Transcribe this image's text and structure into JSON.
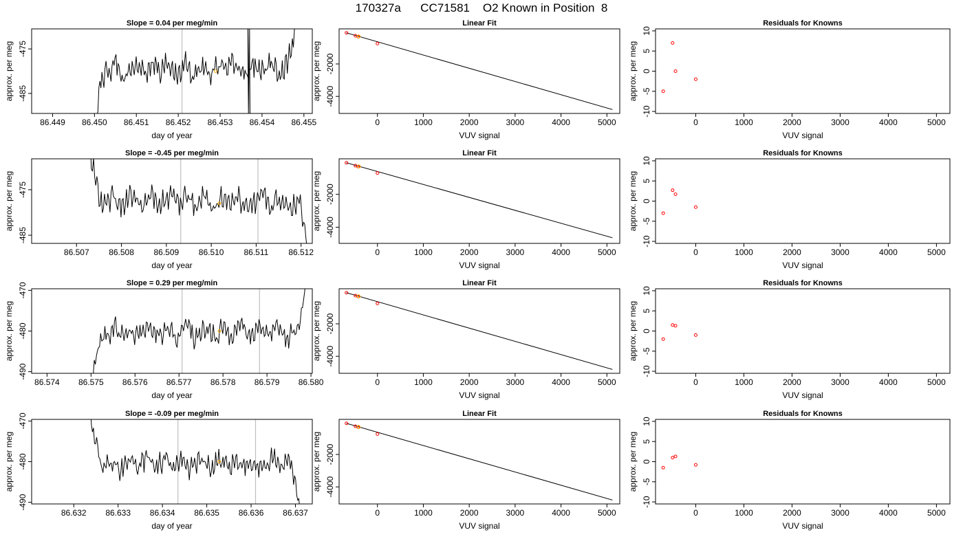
{
  "page": {
    "title": "170327a      CC71581    O2 Known in Position  8"
  },
  "colors": {
    "trace": "#000000",
    "marker_orange": "#ffa500",
    "residual_red": "#ff0000",
    "vline_gray": "#bebebe"
  },
  "chart_data": [
    {
      "type": "line",
      "row": 1,
      "col": 1,
      "title": "Slope =  0.04  per meg/min",
      "xlabel": "day of year",
      "ylabel": "approx. per meg",
      "xlim": [
        86.4485,
        86.4552
      ],
      "ylim": [
        -489.5,
        -470.5
      ],
      "xticks": [
        86.449,
        86.45,
        86.451,
        86.452,
        86.453,
        86.454,
        86.455
      ],
      "xtick_labels": [
        "86.449",
        "86.450",
        "86.451",
        "86.452",
        "86.453",
        "86.454",
        "86.455"
      ],
      "yticks": [
        -485,
        -475
      ],
      "ytick_labels": [
        "-485",
        "-475"
      ],
      "grid": false,
      "trace": {
        "start": 86.45001,
        "end": 86.45482,
        "level": -479.5,
        "noise": 1.8,
        "head": -492,
        "tail": -466
      },
      "vlines": [
        86.45209,
        86.45372
      ],
      "spike_at": 86.45366,
      "marker": {
        "x": 86.45289,
        "y": -480
      }
    },
    {
      "type": "scatter",
      "row": 1,
      "col": 2,
      "title": "Linear Fit",
      "xlabel": "VUV signal",
      "ylabel": "approx. per meg",
      "xlim": [
        -835,
        5280
      ],
      "ylim": [
        -5050,
        160
      ],
      "xticks": [
        0,
        1000,
        2000,
        3000,
        4000,
        5000
      ],
      "xtick_labels": [
        "0",
        "1000",
        "2000",
        "3000",
        "4000",
        "5000"
      ],
      "yticks": [
        -4000,
        -2000
      ],
      "ytick_labels": [
        "-4000",
        "-2000"
      ],
      "grid": false,
      "points": [
        [
          -675,
          -85
        ],
        [
          -480,
          -265
        ],
        [
          -420,
          -320
        ],
        [
          0,
          -745
        ]
      ],
      "highlight": [
        -410,
        -310
      ],
      "fit_line": [
        [
          -675,
          -85
        ],
        [
          5120,
          -4810
        ]
      ]
    },
    {
      "type": "scatter",
      "row": 1,
      "col": 3,
      "title": "Residuals for Knowns",
      "xlabel": "VUV signal",
      "ylabel": "approx. per meg",
      "xlim": [
        -835,
        5280
      ],
      "ylim": [
        -10.5,
        10.5
      ],
      "xticks": [
        0,
        1000,
        2000,
        3000,
        4000,
        5000
      ],
      "xtick_labels": [
        "0",
        "1000",
        "2000",
        "3000",
        "4000",
        "5000"
      ],
      "yticks": [
        -10,
        -5,
        0,
        5,
        10
      ],
      "ytick_labels": [
        "-10",
        "-5",
        "0",
        "5",
        "10"
      ],
      "grid": false,
      "points": [
        [
          -675,
          -5
        ],
        [
          -480,
          7
        ],
        [
          -420,
          0
        ],
        [
          0,
          -2
        ]
      ]
    },
    {
      "type": "line",
      "row": 2,
      "col": 1,
      "title": "Slope =  -0.45  per meg/min",
      "xlabel": "day of year",
      "ylabel": "approx. per meg",
      "xlim": [
        86.506,
        86.51225
      ],
      "ylim": [
        -486.8,
        -468.2
      ],
      "xticks": [
        86.507,
        86.508,
        86.509,
        86.51,
        86.511,
        86.512
      ],
      "xtick_labels": [
        "86.507",
        "86.508",
        "86.509",
        "86.510",
        "86.511",
        "86.512"
      ],
      "yticks": [
        -485,
        -475
      ],
      "ytick_labels": [
        "-485",
        "-475"
      ],
      "grid": false,
      "trace": {
        "start": 86.50728,
        "end": 86.51218,
        "level": -477.5,
        "noise": 1.8,
        "head": -466,
        "tail": -492
      },
      "vlines": [
        86.50932,
        86.51104
      ],
      "marker": {
        "x": 86.51018,
        "y": -478
      }
    },
    {
      "type": "scatter",
      "row": 2,
      "col": 2,
      "title": "Linear Fit",
      "xlabel": "VUV signal",
      "ylabel": "approx. per meg",
      "xlim": [
        -835,
        5280
      ],
      "ylim": [
        -4980,
        160
      ],
      "xticks": [
        0,
        1000,
        2000,
        3000,
        4000,
        5000
      ],
      "xtick_labels": [
        "0",
        "1000",
        "2000",
        "3000",
        "4000",
        "5000"
      ],
      "yticks": [
        -4000,
        -2000
      ],
      "ytick_labels": [
        "-4000",
        "-2000"
      ],
      "grid": false,
      "points": [
        [
          -675,
          -80
        ],
        [
          -480,
          -255
        ],
        [
          -420,
          -315
        ],
        [
          0,
          -705
        ]
      ],
      "highlight": [
        -405,
        -305
      ],
      "fit_line": [
        [
          -675,
          -80
        ],
        [
          5120,
          -4640
        ]
      ]
    },
    {
      "type": "scatter",
      "row": 2,
      "col": 3,
      "title": "Residuals for Knowns",
      "xlabel": "VUV signal",
      "ylabel": "approx. per meg",
      "xlim": [
        -835,
        5280
      ],
      "ylim": [
        -10.5,
        10.5
      ],
      "xticks": [
        0,
        1000,
        2000,
        3000,
        4000,
        5000
      ],
      "xtick_labels": [
        "0",
        "1000",
        "2000",
        "3000",
        "4000",
        "5000"
      ],
      "yticks": [
        -10,
        -5,
        0,
        5,
        10
      ],
      "ytick_labels": [
        "-10",
        "-5",
        "0",
        "5",
        "10"
      ],
      "grid": false,
      "points": [
        [
          -675,
          -3
        ],
        [
          -480,
          2.7
        ],
        [
          -420,
          1.7
        ],
        [
          0,
          -1.5
        ]
      ]
    },
    {
      "type": "line",
      "row": 3,
      "col": 1,
      "title": "Slope =  0.29  per meg/min",
      "xlabel": "day of year",
      "ylabel": "approx. per meg",
      "xlim": [
        86.57365,
        86.58003
      ],
      "ylim": [
        -490.4,
        -469.6
      ],
      "xticks": [
        86.574,
        86.575,
        86.576,
        86.577,
        86.578,
        86.579,
        86.58
      ],
      "xtick_labels": [
        "86.574",
        "86.575",
        "86.576",
        "86.577",
        "86.578",
        "86.579",
        "86.580"
      ],
      "yticks": [
        -490,
        -480,
        -470
      ],
      "ytick_labels": [
        "-490",
        "-480",
        "-470"
      ],
      "grid": false,
      "trace": {
        "start": 86.57505,
        "end": 86.57988,
        "level": -480.5,
        "noise": 1.7,
        "head": -492,
        "tail": -468
      },
      "vlines": [
        86.57707,
        86.57883
      ],
      "marker": {
        "x": 86.57792,
        "y": -480
      }
    },
    {
      "type": "scatter",
      "row": 3,
      "col": 2,
      "title": "Linear Fit",
      "xlabel": "VUV signal",
      "ylabel": "approx. per meg",
      "xlim": [
        -835,
        5280
      ],
      "ylim": [
        -5050,
        160
      ],
      "xticks": [
        0,
        1000,
        2000,
        3000,
        4000,
        5000
      ],
      "xtick_labels": [
        "0",
        "1000",
        "2000",
        "3000",
        "4000",
        "5000"
      ],
      "yticks": [
        -4000,
        -2000
      ],
      "ytick_labels": [
        "-4000",
        "-2000"
      ],
      "grid": false,
      "points": [
        [
          -675,
          -85
        ],
        [
          -480,
          -265
        ],
        [
          -420,
          -320
        ],
        [
          0,
          -745
        ]
      ],
      "highlight": [
        -410,
        -310
      ],
      "fit_line": [
        [
          -675,
          -85
        ],
        [
          5120,
          -4810
        ]
      ]
    },
    {
      "type": "scatter",
      "row": 3,
      "col": 3,
      "title": "Residuals for Knowns",
      "xlabel": "VUV signal",
      "ylabel": "approx. per meg",
      "xlim": [
        -835,
        5280
      ],
      "ylim": [
        -10.5,
        10.5
      ],
      "xticks": [
        0,
        1000,
        2000,
        3000,
        4000,
        5000
      ],
      "xtick_labels": [
        "0",
        "1000",
        "2000",
        "3000",
        "4000",
        "5000"
      ],
      "yticks": [
        -10,
        -5,
        0,
        5,
        10
      ],
      "ytick_labels": [
        "-10",
        "-5",
        "0",
        "5",
        "10"
      ],
      "grid": false,
      "points": [
        [
          -675,
          -2
        ],
        [
          -480,
          1.5
        ],
        [
          -420,
          1.3
        ],
        [
          0,
          -1
        ]
      ]
    },
    {
      "type": "line",
      "row": 4,
      "col": 1,
      "title": "Slope =  -0.09  per meg/min",
      "xlabel": "day of year",
      "ylabel": "approx. per meg",
      "xlim": [
        86.63105,
        86.63738
      ],
      "ylim": [
        -490.4,
        -469.6
      ],
      "xticks": [
        86.632,
        86.633,
        86.634,
        86.635,
        86.636,
        86.637
      ],
      "xtick_labels": [
        "86.632",
        "86.633",
        "86.634",
        "86.635",
        "86.636",
        "86.637"
      ],
      "yticks": [
        -490,
        -480,
        -470
      ],
      "ytick_labels": [
        "-490",
        "-480",
        "-470"
      ],
      "grid": false,
      "trace": {
        "start": 86.63235,
        "end": 86.6371,
        "level": -480.5,
        "noise": 1.7,
        "head": -466,
        "tail": -492
      },
      "vlines": [
        86.63435,
        86.6361
      ],
      "marker": {
        "x": 86.63528,
        "y": -480
      }
    },
    {
      "type": "scatter",
      "row": 4,
      "col": 2,
      "title": "Linear Fit",
      "xlabel": "VUV signal",
      "ylabel": "approx. per meg",
      "xlim": [
        -835,
        5280
      ],
      "ylim": [
        -5050,
        160
      ],
      "xticks": [
        0,
        1000,
        2000,
        3000,
        4000,
        5000
      ],
      "xtick_labels": [
        "0",
        "1000",
        "2000",
        "3000",
        "4000",
        "5000"
      ],
      "yticks": [
        -4000,
        -2000
      ],
      "ytick_labels": [
        "-4000",
        "-2000"
      ],
      "grid": false,
      "points": [
        [
          -675,
          -85
        ],
        [
          -480,
          -265
        ],
        [
          -420,
          -320
        ],
        [
          0,
          -745
        ]
      ],
      "highlight": [
        -410,
        -310
      ],
      "fit_line": [
        [
          -675,
          -85
        ],
        [
          5120,
          -4810
        ]
      ]
    },
    {
      "type": "scatter",
      "row": 4,
      "col": 3,
      "title": "Residuals for Knowns",
      "xlabel": "VUV signal",
      "ylabel": "approx. per meg",
      "xlim": [
        -835,
        5280
      ],
      "ylim": [
        -10.5,
        10.5
      ],
      "xticks": [
        0,
        1000,
        2000,
        3000,
        4000,
        5000
      ],
      "xtick_labels": [
        "0",
        "1000",
        "2000",
        "3000",
        "4000",
        "5000"
      ],
      "yticks": [
        -10,
        -5,
        0,
        5,
        10
      ],
      "ytick_labels": [
        "-10",
        "-5",
        "0",
        "5",
        "10"
      ],
      "grid": false,
      "points": [
        [
          -675,
          -1.5
        ],
        [
          -480,
          1
        ],
        [
          -420,
          1.3
        ],
        [
          0,
          -0.8
        ]
      ]
    }
  ]
}
